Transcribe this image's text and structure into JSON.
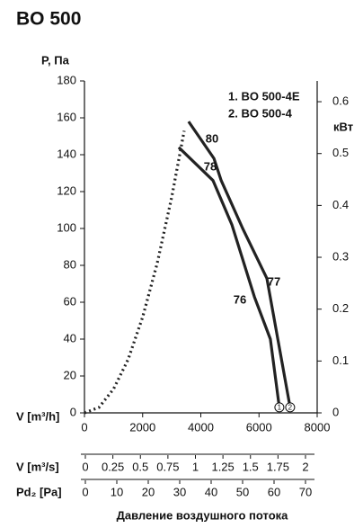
{
  "chart_data": {
    "type": "line",
    "title": "BO 500",
    "ylabel": "P, Па",
    "y2label": "кВт",
    "xlabel": "V [m³/h]",
    "xlim": [
      0,
      8000
    ],
    "xticks": [
      0,
      2000,
      4000,
      6000,
      8000
    ],
    "ylim": [
      0,
      180
    ],
    "yticks": [
      0,
      20,
      40,
      60,
      80,
      100,
      120,
      140,
      160,
      180
    ],
    "y2lim": [
      0,
      0.64
    ],
    "y2ticks": [
      0,
      0.1,
      0.2,
      0.3,
      0.4,
      0.5,
      0.6
    ],
    "series": [
      {
        "name": "1. BO 500-4E",
        "marker": "1",
        "color": "#222222",
        "x": [
          3240,
          4420,
          5070,
          5840,
          6390,
          6700
        ],
        "values": [
          144,
          126,
          102,
          63,
          40,
          3
        ]
      },
      {
        "name": "2. BO 500-4",
        "marker": "2",
        "color": "#222222",
        "x": [
          3580,
          4450,
          4700,
          5440,
          6270,
          7070
        ],
        "values": [
          158,
          138,
          126,
          100,
          73,
          3
        ]
      }
    ],
    "system_curve": {
      "color": "#222222",
      "x": [
        0,
        500,
        1000,
        1500,
        2000,
        2500,
        3000,
        3430
      ],
      "values": [
        0,
        3,
        13,
        29,
        52,
        81,
        117,
        153
      ]
    },
    "annotations": [
      "80",
      "78",
      "77",
      "76"
    ],
    "flow_m3s": {
      "label": "V [m³/s]",
      "lim": [
        0,
        2
      ],
      "ticks": [
        0,
        0.25,
        0.5,
        0.75,
        1,
        1.25,
        1.5,
        1.75,
        2
      ]
    },
    "pressure_pa": {
      "label": "Pd₂ [Pa]",
      "lim": [
        0,
        70
      ],
      "ticks": [
        0,
        10,
        20,
        30,
        40,
        50,
        60,
        70
      ]
    },
    "footer": "Давление воздушного потока"
  }
}
